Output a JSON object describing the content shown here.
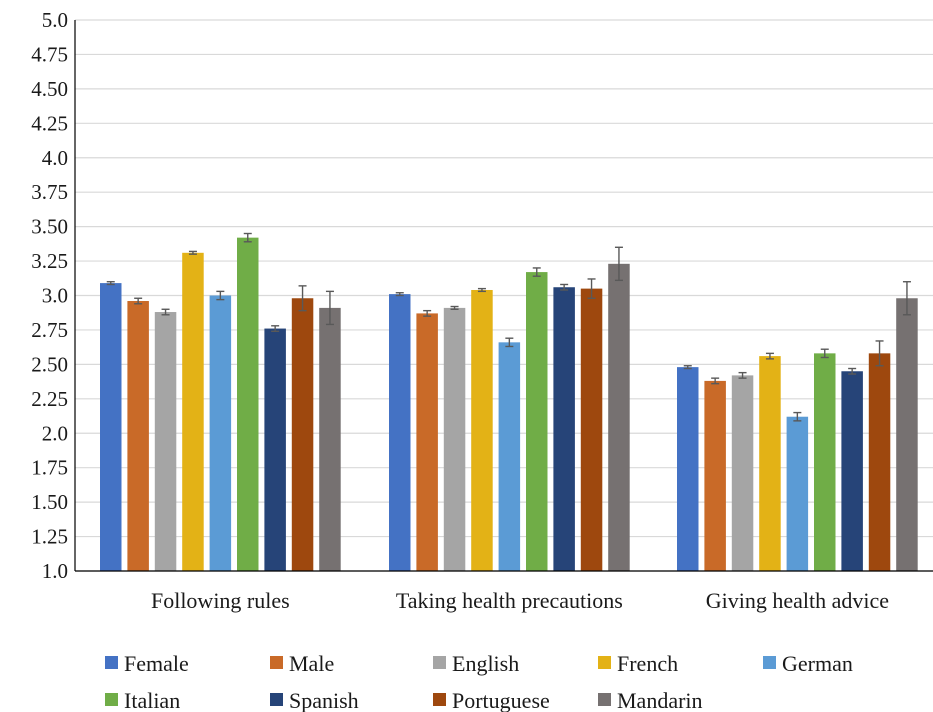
{
  "chart_data": {
    "type": "bar",
    "title": "",
    "xlabel": "",
    "ylabel": "",
    "ylim": [
      1.0,
      5.0
    ],
    "y_ticks": [
      "1.0",
      "1.25",
      "1.50",
      "1.75",
      "2.0",
      "2.25",
      "2.50",
      "2.75",
      "3.0",
      "3.25",
      "3.50",
      "3.75",
      "4.0",
      "4.25",
      "4.50",
      "4.75",
      "5.0"
    ],
    "grid": true,
    "legend_position": "bottom",
    "error_bars": true,
    "categories": [
      "Following rules",
      "Taking health precautions",
      "Giving health advice"
    ],
    "series": [
      {
        "name": "Female",
        "color": "#4472C4",
        "values": [
          3.09,
          3.01,
          2.48
        ],
        "errors": [
          0.01,
          0.01,
          0.01
        ]
      },
      {
        "name": "Male",
        "color": "#C96A28",
        "values": [
          2.96,
          2.87,
          2.38
        ],
        "errors": [
          0.02,
          0.02,
          0.02
        ]
      },
      {
        "name": "English",
        "color": "#A5A5A5",
        "values": [
          2.88,
          2.91,
          2.42
        ],
        "errors": [
          0.02,
          0.01,
          0.02
        ]
      },
      {
        "name": "French",
        "color": "#E3B216",
        "values": [
          3.31,
          3.04,
          2.56
        ],
        "errors": [
          0.01,
          0.01,
          0.02
        ]
      },
      {
        "name": "German",
        "color": "#5B9BD5",
        "values": [
          3.0,
          2.66,
          2.12
        ],
        "errors": [
          0.03,
          0.03,
          0.03
        ]
      },
      {
        "name": "Italian",
        "color": "#70AD47",
        "values": [
          3.42,
          3.17,
          2.58
        ],
        "errors": [
          0.03,
          0.03,
          0.03
        ]
      },
      {
        "name": "Spanish",
        "color": "#264478",
        "values": [
          2.76,
          3.06,
          2.45
        ],
        "errors": [
          0.02,
          0.02,
          0.02
        ]
      },
      {
        "name": "Portuguese",
        "color": "#9E480E",
        "values": [
          2.98,
          3.05,
          2.58
        ],
        "errors": [
          0.09,
          0.07,
          0.09
        ]
      },
      {
        "name": "Mandarin",
        "color": "#767171",
        "values": [
          2.91,
          3.23,
          2.98
        ],
        "errors": [
          0.12,
          0.12,
          0.12
        ]
      }
    ]
  }
}
